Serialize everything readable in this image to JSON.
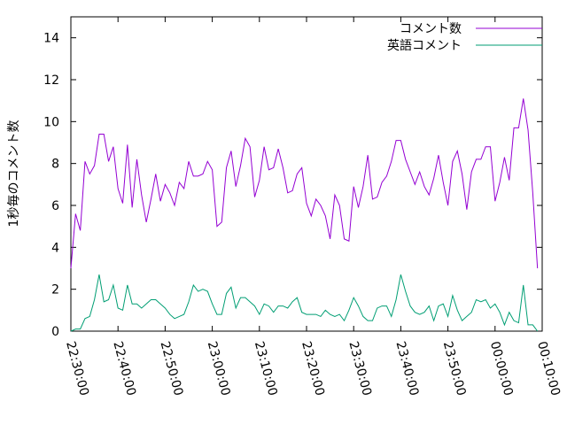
{
  "chart_data": {
    "type": "line",
    "title": "",
    "xlabel": "",
    "ylabel": "1秒毎のコメント数",
    "ylim": [
      0,
      15
    ],
    "yticks": [
      0,
      2,
      4,
      6,
      8,
      10,
      12,
      14
    ],
    "xticks": [
      "22:30:00",
      "22:40:00",
      "22:50:00",
      "23:00:00",
      "23:10:00",
      "23:20:00",
      "23:30:00",
      "23:40:00",
      "23:50:00",
      "00:00:00",
      "00:10:00"
    ],
    "legend_position": "top-right",
    "grid": false,
    "x_start": "22:30:00",
    "x_step_seconds": 60,
    "series": [
      {
        "name": "コメント数",
        "color": "#9400d3",
        "values": [
          3.0,
          5.6,
          4.8,
          8.1,
          7.5,
          7.9,
          9.4,
          9.4,
          8.1,
          8.8,
          6.8,
          6.1,
          8.9,
          5.9,
          8.2,
          6.5,
          5.2,
          6.3,
          7.5,
          6.2,
          7.0,
          6.6,
          6.0,
          7.1,
          6.8,
          8.1,
          7.4,
          7.4,
          7.5,
          8.1,
          7.7,
          5.0,
          5.2,
          7.8,
          8.6,
          6.9,
          7.9,
          9.2,
          8.8,
          6.4,
          7.2,
          8.8,
          7.7,
          7.8,
          8.7,
          7.8,
          6.6,
          6.7,
          7.5,
          7.8,
          6.1,
          5.5,
          6.3,
          6.0,
          5.5,
          4.4,
          6.5,
          6.0,
          4.4,
          4.3,
          6.9,
          5.9,
          6.9,
          8.4,
          6.3,
          6.4,
          7.1,
          7.4,
          8.1,
          9.1,
          9.1,
          8.2,
          7.6,
          7.0,
          7.6,
          6.9,
          6.5,
          7.3,
          8.4,
          7.1,
          6.0,
          8.1,
          8.6,
          7.5,
          5.8,
          7.6,
          8.2,
          8.2,
          8.8,
          8.8,
          6.2,
          7.1,
          8.3,
          7.2,
          9.7,
          9.7,
          11.1,
          9.6,
          6.6,
          3.0
        ]
      },
      {
        "name": "英語コメント",
        "color": "#009e73",
        "values": [
          0.0,
          0.1,
          0.1,
          0.6,
          0.7,
          1.5,
          2.7,
          1.4,
          1.5,
          2.2,
          1.1,
          1.0,
          2.2,
          1.3,
          1.3,
          1.1,
          1.3,
          1.5,
          1.5,
          1.3,
          1.1,
          0.8,
          0.6,
          0.7,
          0.8,
          1.4,
          2.2,
          1.9,
          2.0,
          1.9,
          1.3,
          0.8,
          0.8,
          1.8,
          2.1,
          1.1,
          1.6,
          1.6,
          1.4,
          1.2,
          0.8,
          1.3,
          1.2,
          0.9,
          1.2,
          1.2,
          1.1,
          1.4,
          1.6,
          0.9,
          0.8,
          0.8,
          0.8,
          0.7,
          1.0,
          0.8,
          0.7,
          0.8,
          0.5,
          1.0,
          1.6,
          1.2,
          0.7,
          0.5,
          0.5,
          1.1,
          1.2,
          1.2,
          0.7,
          1.5,
          2.7,
          1.9,
          1.2,
          0.9,
          0.8,
          0.9,
          1.2,
          0.5,
          1.2,
          1.3,
          0.7,
          1.7,
          1.0,
          0.5,
          0.7,
          0.9,
          1.5,
          1.4,
          1.5,
          1.1,
          1.3,
          0.9,
          0.3,
          0.9,
          0.5,
          0.4,
          2.2,
          0.3,
          0.3,
          0.0
        ]
      }
    ]
  }
}
